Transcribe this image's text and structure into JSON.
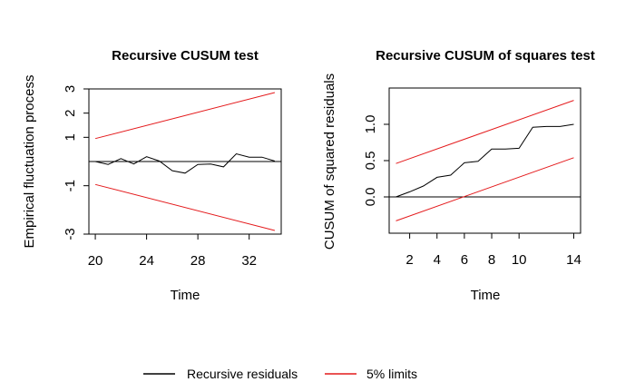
{
  "chart_data": [
    {
      "type": "line",
      "title": "Recursive CUSUM test",
      "xlabel": "Time",
      "ylabel": "Empirical fluctuation process",
      "xlim": [
        19.5,
        34.5
      ],
      "ylim": [
        -3,
        3
      ],
      "x_ticks": [
        20,
        24,
        28,
        32
      ],
      "y_ticks": [
        -3,
        -1,
        1,
        2,
        3
      ],
      "reference_line": 0,
      "series": [
        {
          "name": "Recursive residuals",
          "color": "#000000",
          "x": [
            20,
            21,
            22,
            23,
            24,
            25,
            26,
            27,
            28,
            29,
            30,
            31,
            32,
            33,
            34
          ],
          "y": [
            0.0,
            -0.12,
            0.12,
            -0.1,
            0.2,
            0.02,
            -0.38,
            -0.48,
            -0.12,
            -0.1,
            -0.22,
            0.32,
            0.18,
            0.18,
            0.02
          ]
        },
        {
          "name": "5% limits",
          "color": "#e41a1c",
          "x": [
            20,
            34
          ],
          "y": [
            0.95,
            2.85
          ]
        },
        {
          "name": "5% limits",
          "color": "#e41a1c",
          "x": [
            20,
            34
          ],
          "y": [
            -0.95,
            -2.85
          ]
        }
      ]
    },
    {
      "type": "line",
      "title": "Recursive CUSUM of squares test",
      "xlabel": "Time",
      "ylabel": "CUSUM of squared residuals",
      "xlim": [
        0.5,
        14.5
      ],
      "ylim": [
        -0.5,
        1.5
      ],
      "x_ticks": [
        2,
        4,
        6,
        8,
        10,
        14
      ],
      "y_ticks": [
        0.0,
        0.5,
        1.0
      ],
      "y_tick_labels": [
        "0.0",
        "0.5",
        "1.0"
      ],
      "reference_line": 0,
      "series": [
        {
          "name": "Recursive residuals",
          "color": "#000000",
          "x": [
            1,
            2,
            3,
            4,
            5,
            6,
            7,
            8,
            9,
            10,
            11,
            12,
            13,
            14
          ],
          "y": [
            0.0,
            0.07,
            0.15,
            0.27,
            0.3,
            0.47,
            0.49,
            0.66,
            0.66,
            0.67,
            0.96,
            0.97,
            0.97,
            1.0
          ]
        },
        {
          "name": "5% limits",
          "color": "#e41a1c",
          "x": [
            1,
            14
          ],
          "y": [
            0.46,
            1.33
          ]
        },
        {
          "name": "5% limits",
          "color": "#e41a1c",
          "x": [
            1,
            14
          ],
          "y": [
            -0.33,
            0.54
          ]
        }
      ]
    }
  ],
  "legend": {
    "placement": "bottom",
    "items": [
      {
        "label": "Recursive residuals",
        "color": "#000000"
      },
      {
        "label": "5% limits",
        "color": "#e41a1c"
      }
    ]
  }
}
